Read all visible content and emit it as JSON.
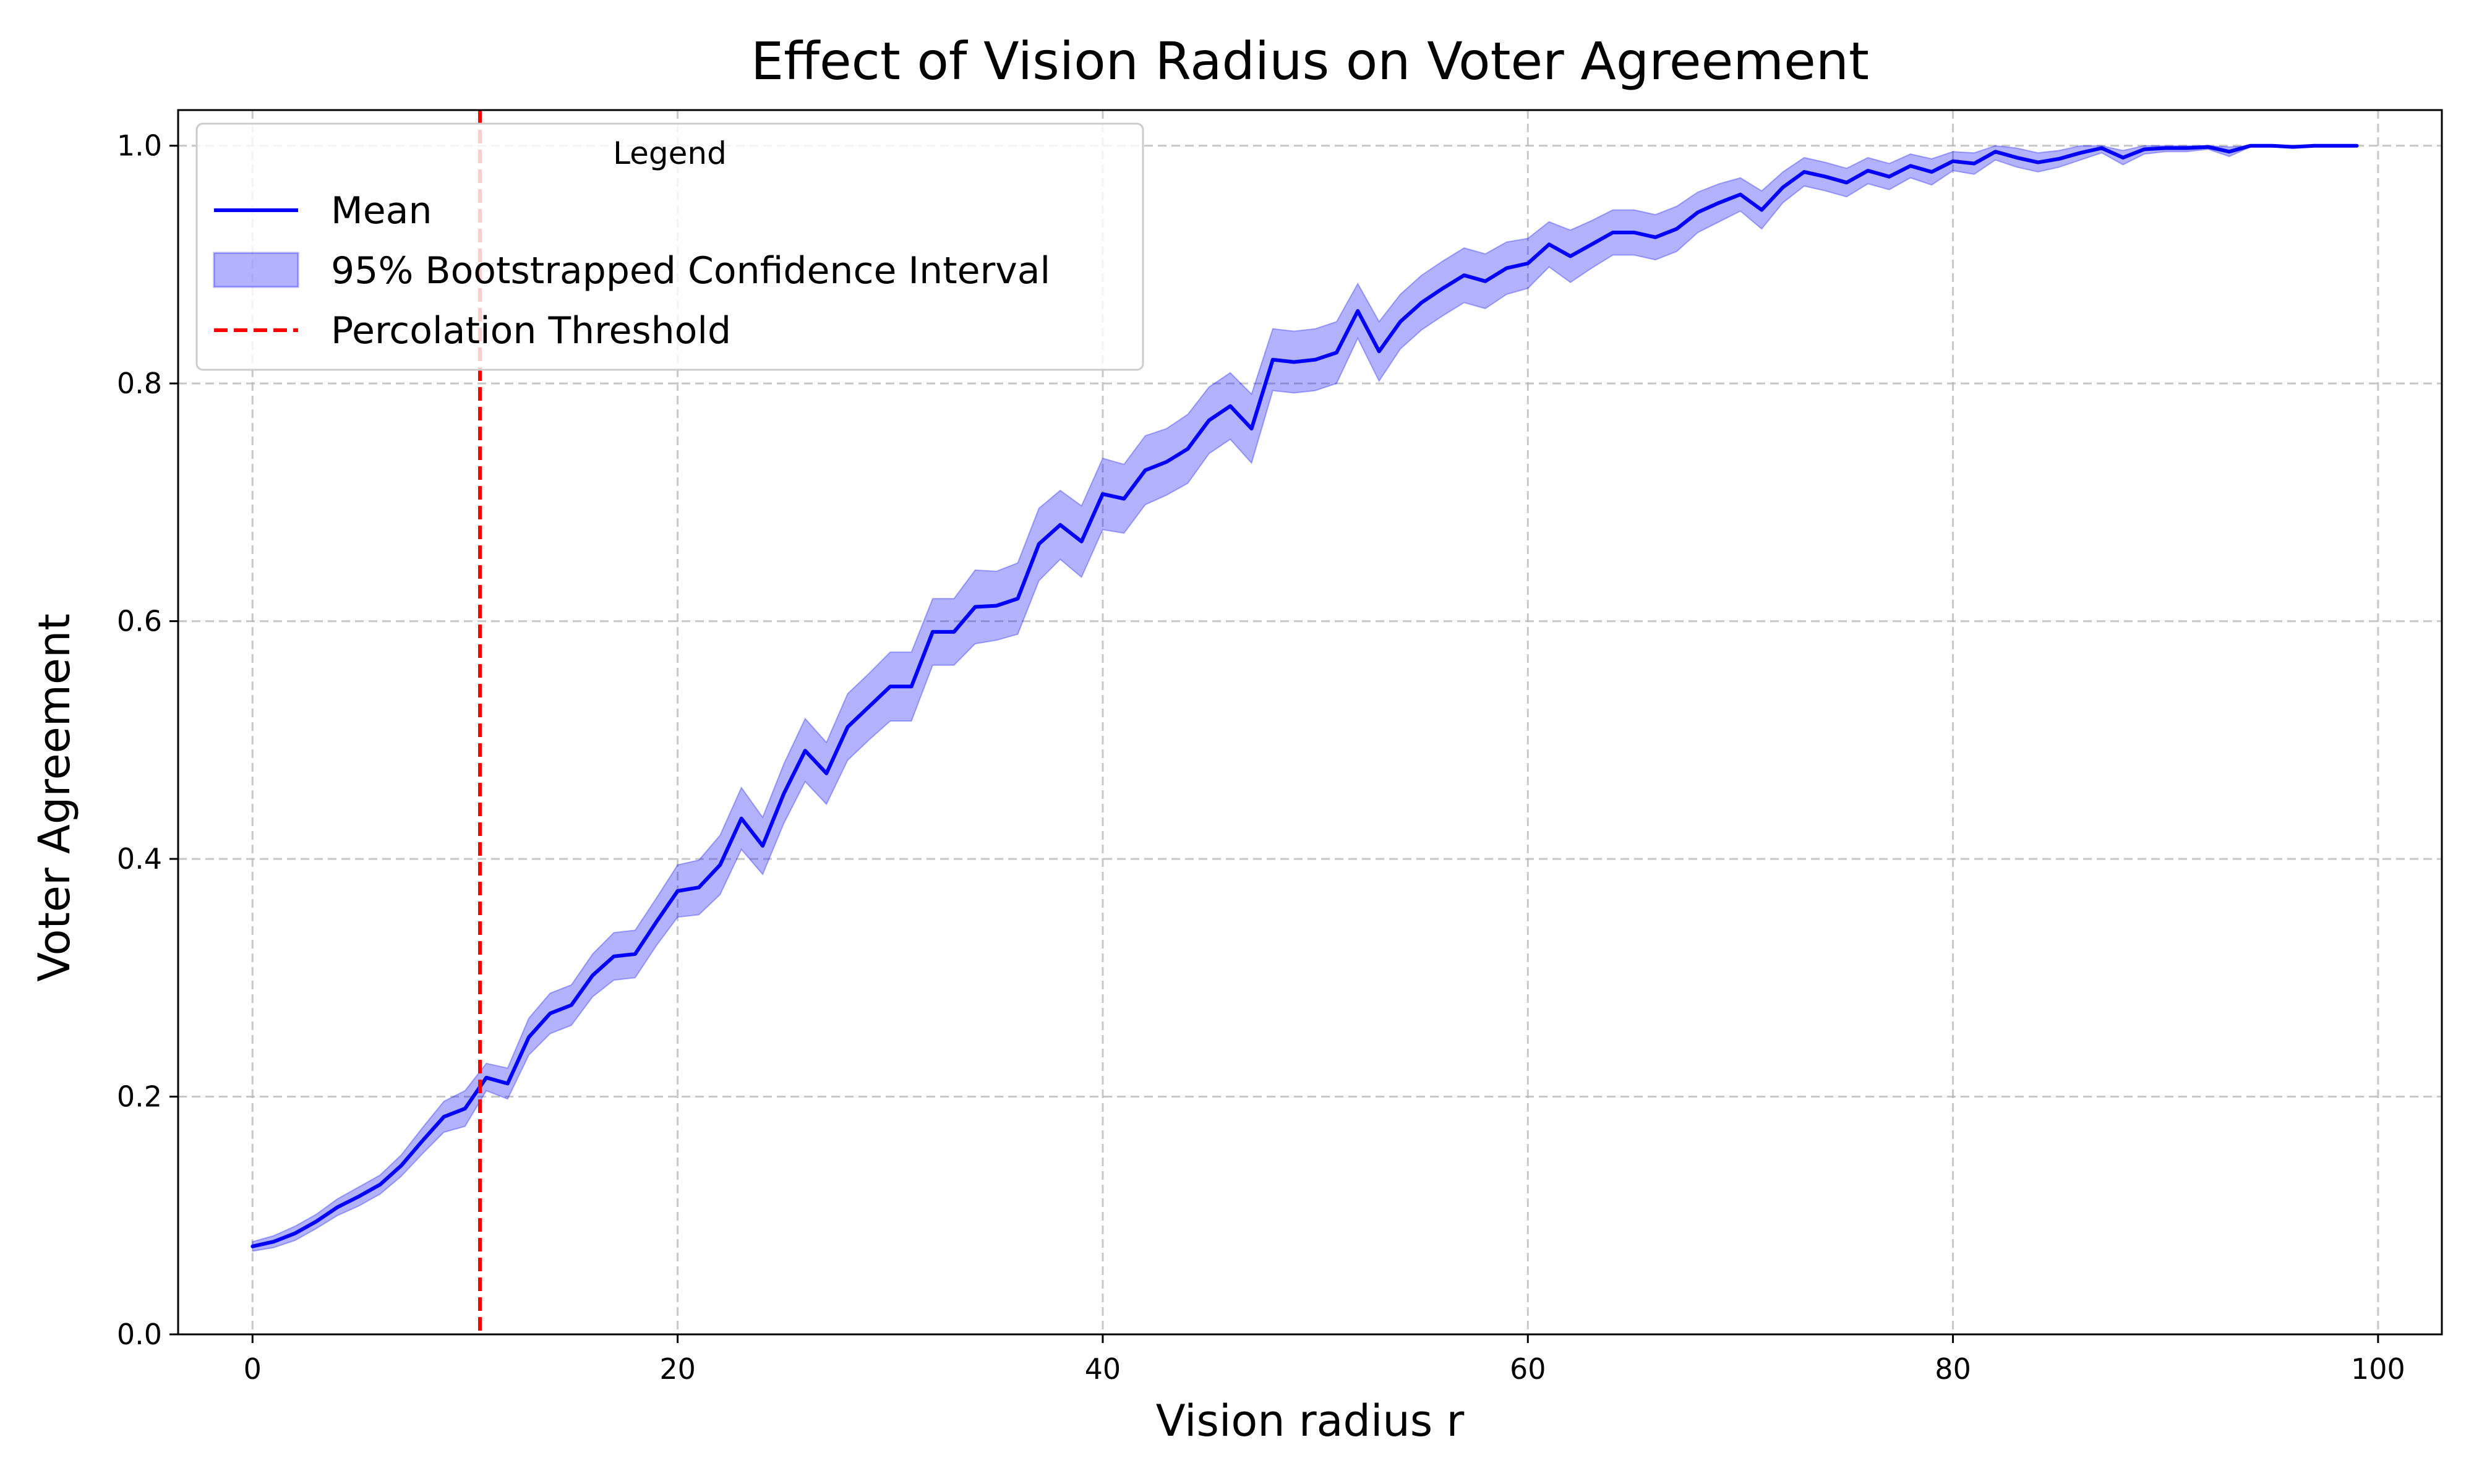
{
  "chart_data": {
    "type": "line",
    "title": "Effect of Vision Radius on Voter Agreement",
    "xlabel": "Vision radius r",
    "ylabel": "Voter Agreement",
    "xlim": [
      -3.5,
      103
    ],
    "ylim": [
      0,
      1.03
    ],
    "xticks": [
      0,
      20,
      40,
      60,
      80,
      100
    ],
    "yticks": [
      0.0,
      0.2,
      0.4,
      0.6,
      0.8,
      1.0
    ],
    "xtick_labels": [
      "0",
      "20",
      "40",
      "60",
      "80",
      "100"
    ],
    "ytick_labels": [
      "0.0",
      "0.2",
      "0.4",
      "0.6",
      "0.8",
      "1.0"
    ],
    "grid": true,
    "legend": {
      "title": "Legend",
      "position": "upper-left",
      "entries": [
        "Mean",
        "95% Bootstrapped Confidence Interval",
        "Percolation Threshold"
      ]
    },
    "series": [
      {
        "name": "Mean",
        "kind": "line",
        "color": "#0000ff",
        "x": [
          0,
          1,
          2,
          3,
          4,
          5,
          6,
          7,
          8,
          9,
          10,
          11,
          12,
          13,
          14,
          15,
          16,
          17,
          18,
          19,
          20,
          21,
          22,
          23,
          24,
          25,
          26,
          27,
          28,
          29,
          30,
          31,
          32,
          33,
          34,
          35,
          36,
          37,
          38,
          39,
          40,
          41,
          42,
          43,
          44,
          45,
          46,
          47,
          48,
          49,
          50,
          51,
          52,
          53,
          54,
          55,
          56,
          57,
          58,
          59,
          60,
          61,
          62,
          63,
          64,
          65,
          66,
          67,
          68,
          69,
          70,
          71,
          72,
          73,
          74,
          75,
          76,
          77,
          78,
          79,
          80,
          81,
          82,
          83,
          84,
          85,
          86,
          87,
          88,
          89,
          90,
          91,
          92,
          93,
          94,
          95,
          96,
          97,
          98,
          99
        ],
        "values": [
          0.074,
          0.078,
          0.085,
          0.095,
          0.107,
          0.116,
          0.126,
          0.142,
          0.163,
          0.183,
          0.19,
          0.216,
          0.211,
          0.25,
          0.27,
          0.277,
          0.302,
          0.318,
          0.32,
          0.347,
          0.373,
          0.376,
          0.395,
          0.434,
          0.411,
          0.455,
          0.491,
          0.472,
          0.511,
          0.528,
          0.545,
          0.545,
          0.591,
          0.591,
          0.612,
          0.613,
          0.619,
          0.665,
          0.681,
          0.667,
          0.707,
          0.703,
          0.727,
          0.734,
          0.745,
          0.769,
          0.781,
          0.762,
          0.82,
          0.818,
          0.82,
          0.826,
          0.861,
          0.827,
          0.852,
          0.868,
          0.88,
          0.891,
          0.886,
          0.897,
          0.901,
          0.917,
          0.907,
          0.917,
          0.927,
          0.927,
          0.923,
          0.93,
          0.944,
          0.952,
          0.959,
          0.946,
          0.965,
          0.978,
          0.974,
          0.969,
          0.979,
          0.974,
          0.983,
          0.978,
          0.987,
          0.985,
          0.995,
          0.99,
          0.986,
          0.989,
          0.994,
          0.998,
          0.99,
          0.997,
          0.998,
          0.998,
          0.999,
          0.995,
          1.0,
          1.0,
          0.999,
          1.0,
          1.0,
          1.0
        ]
      },
      {
        "name": "95% Bootstrapped Confidence Interval",
        "kind": "band",
        "color": "#0000ff",
        "opacity": 0.3,
        "x": [
          0,
          1,
          2,
          3,
          4,
          5,
          6,
          7,
          8,
          9,
          10,
          11,
          12,
          13,
          14,
          15,
          16,
          17,
          18,
          19,
          20,
          21,
          22,
          23,
          24,
          25,
          26,
          27,
          28,
          29,
          30,
          31,
          32,
          33,
          34,
          35,
          36,
          37,
          38,
          39,
          40,
          41,
          42,
          43,
          44,
          45,
          46,
          47,
          48,
          49,
          50,
          51,
          52,
          53,
          54,
          55,
          56,
          57,
          58,
          59,
          60,
          61,
          62,
          63,
          64,
          65,
          66,
          67,
          68,
          69,
          70,
          71,
          72,
          73,
          74,
          75,
          76,
          77,
          78,
          79,
          80,
          81,
          82,
          83,
          84,
          85,
          86,
          87,
          88,
          89,
          90,
          91,
          92,
          93,
          94,
          95,
          96,
          97,
          98,
          99
        ],
        "lower": [
          0.07,
          0.073,
          0.079,
          0.089,
          0.1,
          0.108,
          0.118,
          0.133,
          0.152,
          0.17,
          0.175,
          0.205,
          0.198,
          0.235,
          0.253,
          0.26,
          0.284,
          0.298,
          0.3,
          0.327,
          0.351,
          0.353,
          0.37,
          0.408,
          0.387,
          0.43,
          0.465,
          0.446,
          0.483,
          0.5,
          0.516,
          0.516,
          0.563,
          0.563,
          0.581,
          0.584,
          0.589,
          0.634,
          0.652,
          0.637,
          0.677,
          0.674,
          0.698,
          0.706,
          0.716,
          0.741,
          0.753,
          0.733,
          0.794,
          0.792,
          0.794,
          0.8,
          0.838,
          0.802,
          0.829,
          0.845,
          0.857,
          0.868,
          0.863,
          0.875,
          0.88,
          0.898,
          0.885,
          0.897,
          0.908,
          0.908,
          0.904,
          0.911,
          0.927,
          0.936,
          0.945,
          0.93,
          0.952,
          0.966,
          0.962,
          0.957,
          0.968,
          0.963,
          0.973,
          0.967,
          0.979,
          0.976,
          0.988,
          0.982,
          0.978,
          0.982,
          0.988,
          0.994,
          0.984,
          0.993,
          0.995,
          0.995,
          0.997,
          0.991,
          0.999,
          0.999,
          0.998,
          1.0,
          1.0,
          1.0
        ],
        "upper": [
          0.078,
          0.083,
          0.091,
          0.101,
          0.114,
          0.124,
          0.134,
          0.151,
          0.174,
          0.196,
          0.205,
          0.228,
          0.224,
          0.266,
          0.287,
          0.294,
          0.32,
          0.338,
          0.34,
          0.367,
          0.395,
          0.399,
          0.42,
          0.46,
          0.435,
          0.48,
          0.518,
          0.498,
          0.539,
          0.556,
          0.574,
          0.574,
          0.619,
          0.619,
          0.643,
          0.642,
          0.649,
          0.695,
          0.71,
          0.697,
          0.737,
          0.732,
          0.756,
          0.762,
          0.774,
          0.797,
          0.809,
          0.791,
          0.846,
          0.844,
          0.846,
          0.852,
          0.884,
          0.852,
          0.875,
          0.891,
          0.903,
          0.914,
          0.909,
          0.919,
          0.922,
          0.936,
          0.929,
          0.937,
          0.946,
          0.946,
          0.942,
          0.949,
          0.961,
          0.968,
          0.973,
          0.962,
          0.978,
          0.99,
          0.986,
          0.981,
          0.99,
          0.985,
          0.993,
          0.989,
          0.995,
          0.994,
          1.0,
          0.998,
          0.994,
          0.996,
          1.0,
          1.0,
          0.996,
          1.0,
          1.0,
          1.0,
          1.0,
          0.999,
          1.0,
          1.0,
          1.0,
          1.0,
          1.0,
          1.0
        ]
      },
      {
        "name": "Percolation Threshold",
        "kind": "vline",
        "color": "#ff0000",
        "dash": "dashed",
        "x": 10.7
      }
    ]
  }
}
